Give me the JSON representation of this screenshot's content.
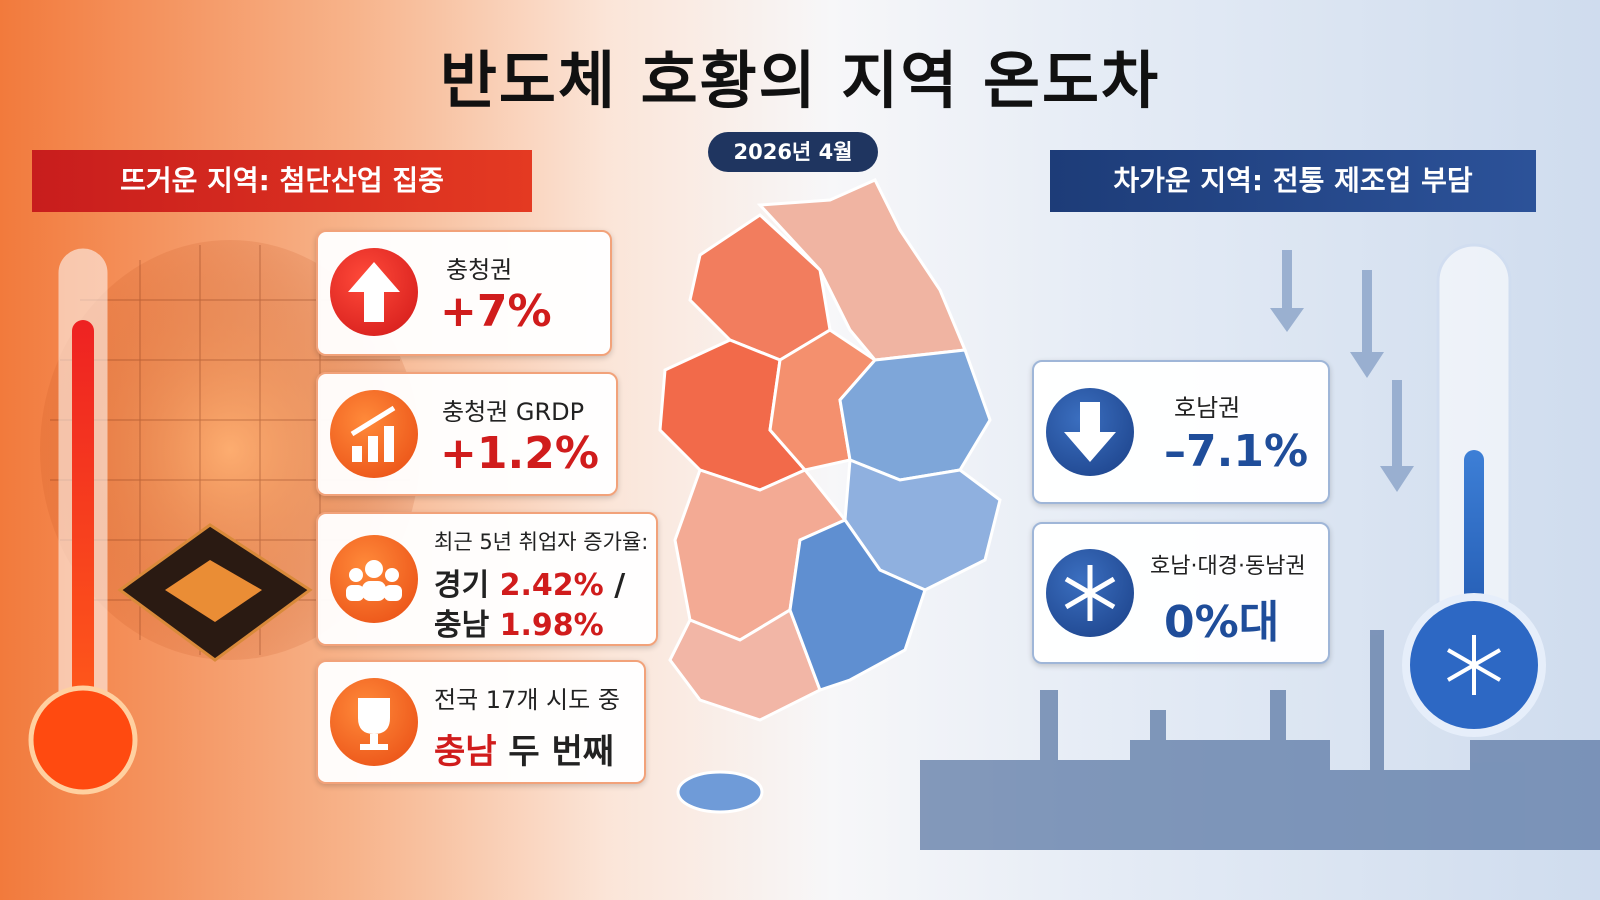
{
  "header": {
    "title": "반도체 호황의 지역 온도차",
    "date": "2026년 4월"
  },
  "hot": {
    "heading": "뜨거운 지역: 첨단산업 집중",
    "cards": [
      {
        "label": "충청권",
        "value": "+7%"
      },
      {
        "label": "충청권 GRDP",
        "value": "+1.2%"
      },
      {
        "label": "최근 5년 취업자 증가율:",
        "lines": [
          {
            "region": "경기",
            "value": "2.42%",
            "sep": "/"
          },
          {
            "region": "충남",
            "value": "1.98%"
          }
        ]
      },
      {
        "label": "전국 17개 시도 중",
        "highlight": "충남",
        "rest": "두 번째"
      }
    ]
  },
  "cold": {
    "heading": "차가운 지역: 전통 제조업 부담",
    "cards": [
      {
        "label": "호남권",
        "value": "–7.1%"
      },
      {
        "label": "호남·대경·동남권",
        "value": "0%대"
      }
    ]
  }
}
